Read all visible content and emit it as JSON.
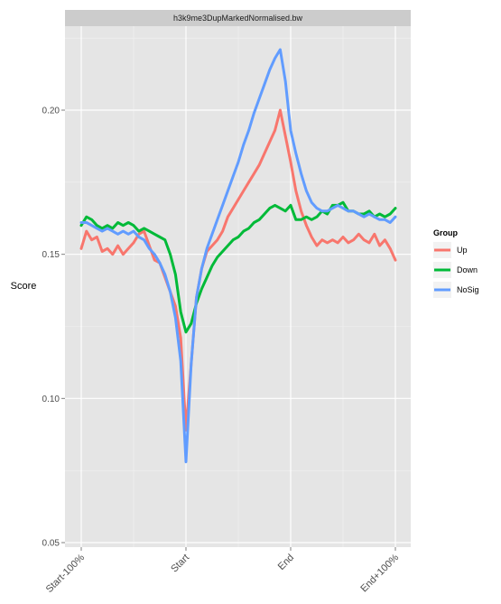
{
  "chart_data": {
    "type": "line",
    "title": "h3k9me3DupMarkedNormalised.bw",
    "xlabel": "",
    "ylabel": "Score",
    "x_categories": [
      "Start-100%",
      "Start",
      "End",
      "End+100%"
    ],
    "x_range": [
      0,
      3
    ],
    "ylim": [
      0.05,
      0.225
    ],
    "y_ticks": [
      0.05,
      0.1,
      0.15,
      0.2
    ],
    "y_tick_labels": [
      "0.05",
      "0.10",
      "0.15",
      "0.20"
    ],
    "grid": true,
    "legend": {
      "title": "Group",
      "placement": "right"
    },
    "series": [
      {
        "name": "Up",
        "color": "#F8766D",
        "points": [
          [
            0,
            0.152
          ],
          [
            0.05,
            0.158
          ],
          [
            0.1,
            0.155
          ],
          [
            0.15,
            0.156
          ],
          [
            0.2,
            0.151
          ],
          [
            0.25,
            0.152
          ],
          [
            0.3,
            0.15
          ],
          [
            0.35,
            0.153
          ],
          [
            0.4,
            0.15
          ],
          [
            0.45,
            0.152
          ],
          [
            0.5,
            0.154
          ],
          [
            0.55,
            0.157
          ],
          [
            0.6,
            0.158
          ],
          [
            0.65,
            0.153
          ],
          [
            0.7,
            0.148
          ],
          [
            0.75,
            0.147
          ],
          [
            0.8,
            0.142
          ],
          [
            0.85,
            0.137
          ],
          [
            0.9,
            0.132
          ],
          [
            0.95,
            0.121
          ],
          [
            1.0,
            0.089
          ],
          [
            1.05,
            0.112
          ],
          [
            1.1,
            0.135
          ],
          [
            1.15,
            0.145
          ],
          [
            1.2,
            0.151
          ],
          [
            1.25,
            0.153
          ],
          [
            1.3,
            0.155
          ],
          [
            1.35,
            0.158
          ],
          [
            1.4,
            0.163
          ],
          [
            1.45,
            0.166
          ],
          [
            1.5,
            0.169
          ],
          [
            1.55,
            0.172
          ],
          [
            1.6,
            0.175
          ],
          [
            1.65,
            0.178
          ],
          [
            1.7,
            0.181
          ],
          [
            1.75,
            0.185
          ],
          [
            1.8,
            0.189
          ],
          [
            1.85,
            0.193
          ],
          [
            1.9,
            0.2
          ],
          [
            1.95,
            0.191
          ],
          [
            2.0,
            0.182
          ],
          [
            2.05,
            0.172
          ],
          [
            2.1,
            0.165
          ],
          [
            2.15,
            0.16
          ],
          [
            2.2,
            0.156
          ],
          [
            2.25,
            0.153
          ],
          [
            2.3,
            0.155
          ],
          [
            2.35,
            0.154
          ],
          [
            2.4,
            0.155
          ],
          [
            2.45,
            0.154
          ],
          [
            2.5,
            0.156
          ],
          [
            2.55,
            0.154
          ],
          [
            2.6,
            0.155
          ],
          [
            2.65,
            0.157
          ],
          [
            2.7,
            0.155
          ],
          [
            2.75,
            0.154
          ],
          [
            2.8,
            0.157
          ],
          [
            2.85,
            0.153
          ],
          [
            2.9,
            0.155
          ],
          [
            2.95,
            0.152
          ],
          [
            3.0,
            0.148
          ]
        ]
      },
      {
        "name": "Down",
        "color": "#00BA38",
        "points": [
          [
            0,
            0.16
          ],
          [
            0.05,
            0.163
          ],
          [
            0.1,
            0.162
          ],
          [
            0.15,
            0.16
          ],
          [
            0.2,
            0.159
          ],
          [
            0.25,
            0.16
          ],
          [
            0.3,
            0.159
          ],
          [
            0.35,
            0.161
          ],
          [
            0.4,
            0.16
          ],
          [
            0.45,
            0.161
          ],
          [
            0.5,
            0.16
          ],
          [
            0.55,
            0.158
          ],
          [
            0.6,
            0.159
          ],
          [
            0.65,
            0.158
          ],
          [
            0.7,
            0.157
          ],
          [
            0.75,
            0.156
          ],
          [
            0.8,
            0.155
          ],
          [
            0.85,
            0.15
          ],
          [
            0.9,
            0.143
          ],
          [
            0.95,
            0.13
          ],
          [
            1.0,
            0.123
          ],
          [
            1.05,
            0.126
          ],
          [
            1.1,
            0.133
          ],
          [
            1.15,
            0.138
          ],
          [
            1.2,
            0.142
          ],
          [
            1.25,
            0.146
          ],
          [
            1.3,
            0.149
          ],
          [
            1.35,
            0.151
          ],
          [
            1.4,
            0.153
          ],
          [
            1.45,
            0.155
          ],
          [
            1.5,
            0.156
          ],
          [
            1.55,
            0.158
          ],
          [
            1.6,
            0.159
          ],
          [
            1.65,
            0.161
          ],
          [
            1.7,
            0.162
          ],
          [
            1.75,
            0.164
          ],
          [
            1.8,
            0.166
          ],
          [
            1.85,
            0.167
          ],
          [
            1.9,
            0.166
          ],
          [
            1.95,
            0.165
          ],
          [
            2.0,
            0.167
          ],
          [
            2.05,
            0.162
          ],
          [
            2.1,
            0.162
          ],
          [
            2.15,
            0.163
          ],
          [
            2.2,
            0.162
          ],
          [
            2.25,
            0.163
          ],
          [
            2.3,
            0.165
          ],
          [
            2.35,
            0.164
          ],
          [
            2.4,
            0.167
          ],
          [
            2.45,
            0.167
          ],
          [
            2.5,
            0.168
          ],
          [
            2.55,
            0.165
          ],
          [
            2.6,
            0.165
          ],
          [
            2.65,
            0.164
          ],
          [
            2.7,
            0.164
          ],
          [
            2.75,
            0.165
          ],
          [
            2.8,
            0.163
          ],
          [
            2.85,
            0.164
          ],
          [
            2.9,
            0.163
          ],
          [
            2.95,
            0.164
          ],
          [
            3.0,
            0.166
          ]
        ]
      },
      {
        "name": "NoSig",
        "color": "#619CFF",
        "points": [
          [
            0,
            0.161
          ],
          [
            0.05,
            0.161
          ],
          [
            0.1,
            0.16
          ],
          [
            0.15,
            0.159
          ],
          [
            0.2,
            0.158
          ],
          [
            0.25,
            0.159
          ],
          [
            0.3,
            0.158
          ],
          [
            0.35,
            0.157
          ],
          [
            0.4,
            0.158
          ],
          [
            0.45,
            0.157
          ],
          [
            0.5,
            0.158
          ],
          [
            0.55,
            0.156
          ],
          [
            0.6,
            0.155
          ],
          [
            0.65,
            0.152
          ],
          [
            0.7,
            0.15
          ],
          [
            0.75,
            0.147
          ],
          [
            0.8,
            0.143
          ],
          [
            0.85,
            0.137
          ],
          [
            0.9,
            0.128
          ],
          [
            0.95,
            0.113
          ],
          [
            1.0,
            0.078
          ],
          [
            1.05,
            0.112
          ],
          [
            1.1,
            0.135
          ],
          [
            1.15,
            0.145
          ],
          [
            1.2,
            0.152
          ],
          [
            1.25,
            0.157
          ],
          [
            1.3,
            0.162
          ],
          [
            1.35,
            0.167
          ],
          [
            1.4,
            0.172
          ],
          [
            1.45,
            0.177
          ],
          [
            1.5,
            0.182
          ],
          [
            1.55,
            0.188
          ],
          [
            1.6,
            0.193
          ],
          [
            1.65,
            0.199
          ],
          [
            1.7,
            0.204
          ],
          [
            1.75,
            0.209
          ],
          [
            1.8,
            0.214
          ],
          [
            1.85,
            0.218
          ],
          [
            1.9,
            0.221
          ],
          [
            1.95,
            0.21
          ],
          [
            2.0,
            0.193
          ],
          [
            2.05,
            0.185
          ],
          [
            2.1,
            0.178
          ],
          [
            2.15,
            0.172
          ],
          [
            2.2,
            0.168
          ],
          [
            2.25,
            0.166
          ],
          [
            2.3,
            0.165
          ],
          [
            2.35,
            0.165
          ],
          [
            2.4,
            0.166
          ],
          [
            2.45,
            0.167
          ],
          [
            2.5,
            0.166
          ],
          [
            2.55,
            0.165
          ],
          [
            2.6,
            0.165
          ],
          [
            2.65,
            0.164
          ],
          [
            2.7,
            0.163
          ],
          [
            2.75,
            0.164
          ],
          [
            2.8,
            0.163
          ],
          [
            2.85,
            0.162
          ],
          [
            2.9,
            0.162
          ],
          [
            2.95,
            0.161
          ],
          [
            3.0,
            0.163
          ]
        ]
      }
    ]
  }
}
